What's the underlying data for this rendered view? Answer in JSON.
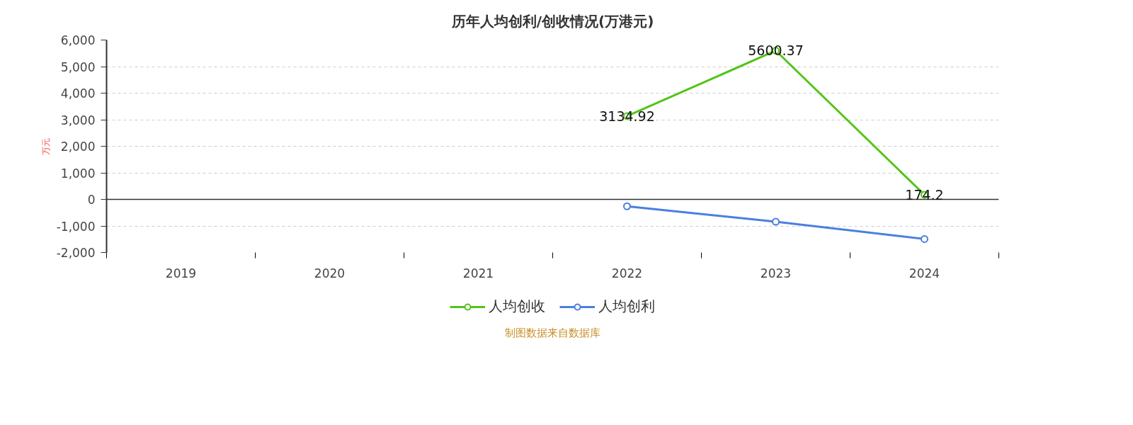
{
  "chart_data": {
    "type": "line",
    "title": "历年人均创利/创收情况(万港元)",
    "ylabel": "万元",
    "categories": [
      "2019",
      "2020",
      "2021",
      "2022",
      "2023",
      "2024"
    ],
    "series": [
      {
        "name": "人均创收",
        "color": "#52c41a",
        "values": [
          null,
          null,
          null,
          3134.92,
          5600.37,
          174.2
        ],
        "value_labels": [
          null,
          null,
          null,
          "3134.92",
          "5600.37",
          "174.2"
        ]
      },
      {
        "name": "人均创利",
        "color": "#4a7fe0",
        "values": [
          null,
          null,
          null,
          -260,
          -840,
          -1490
        ]
      }
    ],
    "ylim": [
      -2000,
      6000
    ],
    "yticks": [
      {
        "value": -2000,
        "label": "-2,000"
      },
      {
        "value": -1000,
        "label": "-1,000"
      },
      0,
      {
        "value": 1000,
        "label": "1,000"
      },
      {
        "value": 2000,
        "label": "2,000"
      },
      {
        "value": 3000,
        "label": "3,000"
      },
      {
        "value": 4000,
        "label": "4,000"
      },
      {
        "value": 5000,
        "label": "5,000"
      },
      {
        "value": 6000,
        "label": "6,000"
      }
    ],
    "grid": "y",
    "legend": "bottom",
    "marker": "circle",
    "line_style": "solid",
    "annotations": [
      "制图数据来自数据库"
    ]
  }
}
